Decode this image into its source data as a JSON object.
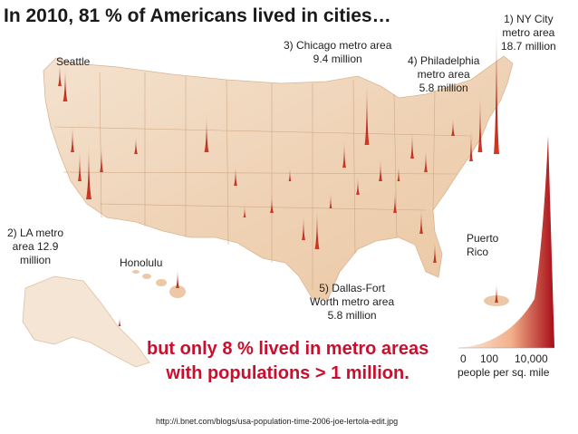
{
  "title": "In 2010, 81 % of Americans lived in cities…",
  "labels": {
    "ny": [
      "1) NY City",
      "metro area",
      "18.7 million"
    ],
    "chicago": [
      "3) Chicago metro area",
      "9.4 million"
    ],
    "philadelphia": [
      "4) Philadelphia",
      "metro area",
      "5.8 million"
    ],
    "seattle": "Seattle",
    "la": [
      "2) LA metro",
      "area 12.9",
      "million"
    ],
    "honolulu": "Honolulu",
    "puerto_rico": [
      "Puerto",
      "Rico"
    ],
    "dallas": [
      "5) Dallas-Fort",
      "Worth metro area",
      "5.8 million"
    ]
  },
  "callout": [
    "but only 8 % lived in metro areas",
    "with populations > 1 million."
  ],
  "legend": {
    "ticks": [
      "0",
      "100",
      "10,000"
    ],
    "unit": "people per sq. mile",
    "colors": [
      "#f6e7d8",
      "#e8743f",
      "#b5121b"
    ]
  },
  "source_url": "http://i.bnet.com/blogs/usa-population-time-2006-joe-lertola-edit.jpg",
  "colors": {
    "land": "#f1ddc6",
    "land_dark": "#e9c3a0",
    "spike": "#b5121b",
    "callout": "#c8102e"
  }
}
